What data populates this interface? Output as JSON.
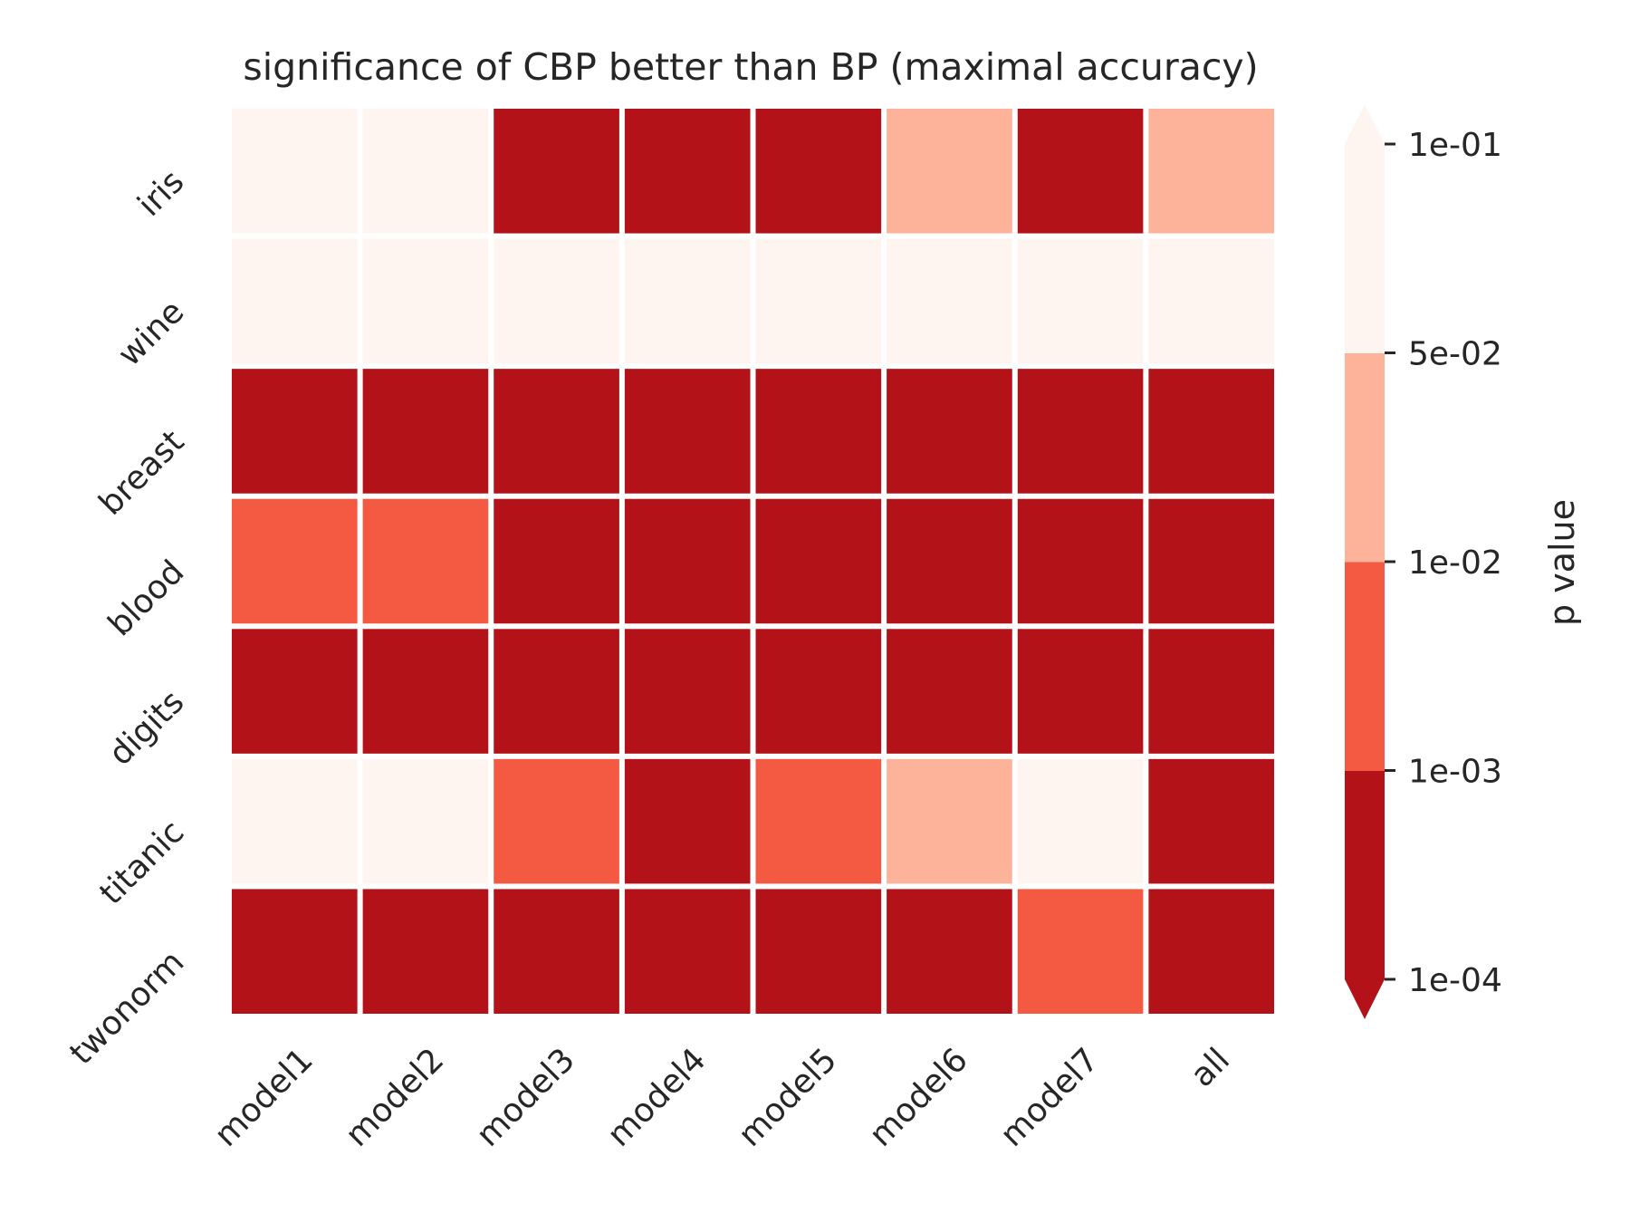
{
  "chart_data": {
    "type": "heatmap",
    "title": "significance of CBP better than BP (maximal accuracy)",
    "xlabel": "",
    "ylabel": "",
    "x_categories": [
      "model1",
      "model2",
      "model3",
      "model4",
      "model5",
      "model6",
      "model7",
      "all"
    ],
    "y_categories": [
      "iris",
      "wine",
      "breast",
      "blood",
      "digits",
      "titanic",
      "twonorm"
    ],
    "bins": [
      {
        "range": [
          0.0001,
          0.001
        ],
        "color": "#b31218"
      },
      {
        "range": [
          0.001,
          0.01
        ],
        "color": "#f45a42"
      },
      {
        "range": [
          0.01,
          0.05
        ],
        "color": "#fcb399"
      },
      {
        "range": [
          0.05,
          0.1
        ],
        "color": "#fff5f0"
      }
    ],
    "extend_below_color": "#b31218",
    "extend_above_color": "#fff5f0",
    "value_bins": [
      [
        3,
        3,
        0,
        0,
        0,
        2,
        0,
        2
      ],
      [
        3,
        3,
        3,
        3,
        3,
        3,
        3,
        3
      ],
      [
        0,
        0,
        0,
        0,
        0,
        0,
        0,
        0
      ],
      [
        1,
        1,
        0,
        0,
        0,
        0,
        0,
        0
      ],
      [
        0,
        0,
        0,
        0,
        0,
        0,
        0,
        0
      ],
      [
        3,
        3,
        1,
        0,
        1,
        2,
        3,
        0
      ],
      [
        0,
        0,
        0,
        0,
        0,
        0,
        1,
        0
      ]
    ],
    "colorbar": {
      "label": "p value",
      "ticks": [
        "1e-04",
        "1e-03",
        "1e-02",
        "5e-02",
        "1e-01"
      ],
      "extend": "both"
    },
    "grid": false,
    "cell_border_color": "#ffffff"
  }
}
